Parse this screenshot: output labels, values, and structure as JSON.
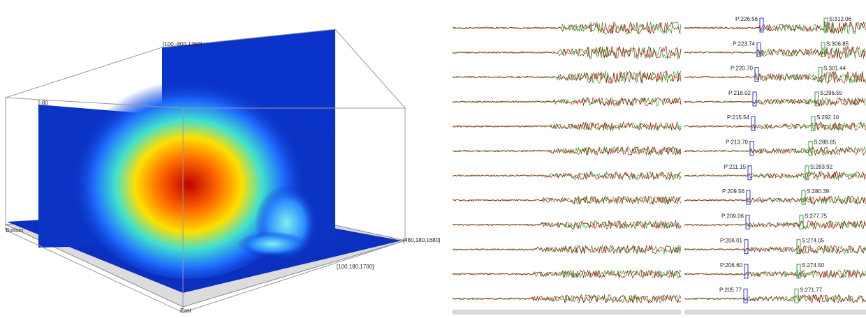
{
  "volume": {
    "labels": {
      "top": "[100,-800,1360]",
      "upper_left": "[-80",
      "bottom_left": "Bottom",
      "right": "[480,180,1680]",
      "front": "[100,180,1700]",
      "east": "East"
    }
  },
  "picks": [
    {
      "p": "P:226.56",
      "s": "S:312.06"
    },
    {
      "p": "P:223.74",
      "s": "S:306.85"
    },
    {
      "p": "P:220.70",
      "s": "S:301.44"
    },
    {
      "p": "P:218.02",
      "s": "S:296.55"
    },
    {
      "p": "P:215.54",
      "s": "S:292.10"
    },
    {
      "p": "P:213.70",
      "s": "S:288.65"
    },
    {
      "p": "P:211.15",
      "s": "S:283.92"
    },
    {
      "p": "P:209.56",
      "s": "S:280.39"
    },
    {
      "p": "P:209.06",
      "s": "S:277.75"
    },
    {
      "p": "P:206.01",
      "s": "S:274.05"
    },
    {
      "p": "P:206.60",
      "s": "S:274.50"
    },
    {
      "p": "P:205.77",
      "s": "S:271.77"
    }
  ]
}
